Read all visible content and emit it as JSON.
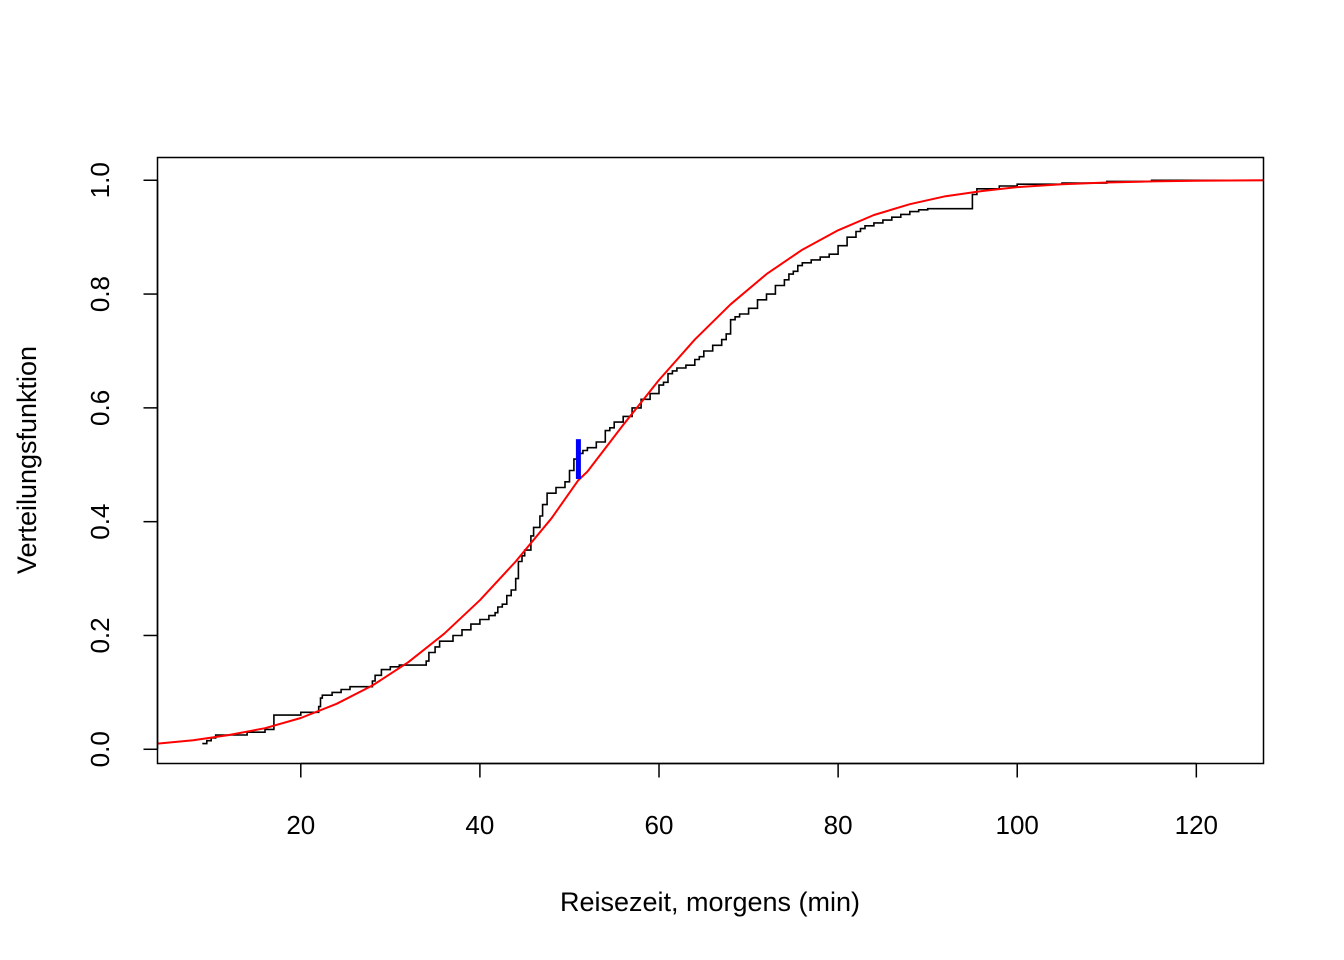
{
  "chart_data": {
    "type": "line",
    "title": "",
    "xlabel": "Reisezeit, morgens (min)",
    "ylabel": "Verteilungsfunktion",
    "xlim": [
      4,
      127.5
    ],
    "ylim": [
      -0.025,
      1.04
    ],
    "x_ticks": [
      20,
      40,
      60,
      80,
      100,
      120
    ],
    "x_tick_labels": [
      "20",
      "40",
      "60",
      "80",
      "100",
      "120"
    ],
    "y_ticks": [
      0.0,
      0.2,
      0.4,
      0.6,
      0.8,
      1.0
    ],
    "y_tick_labels": [
      "0.0",
      "0.2",
      "0.4",
      "0.6",
      "0.8",
      "1.0"
    ],
    "grid": false,
    "legend": "none",
    "series": [
      {
        "kind": "empirical-cdf",
        "color": "#000000",
        "points": [
          [
            9,
            0.01
          ],
          [
            9.5,
            0.015
          ],
          [
            10,
            0.02
          ],
          [
            10.5,
            0.025
          ],
          [
            14,
            0.03
          ],
          [
            16,
            0.035
          ],
          [
            17,
            0.06
          ],
          [
            20,
            0.065
          ],
          [
            22,
            0.075
          ],
          [
            22.2,
            0.09
          ],
          [
            22.4,
            0.095
          ],
          [
            23.5,
            0.1
          ],
          [
            24.5,
            0.105
          ],
          [
            25.5,
            0.11
          ],
          [
            28,
            0.12
          ],
          [
            28.3,
            0.13
          ],
          [
            29,
            0.14
          ],
          [
            30,
            0.145
          ],
          [
            31,
            0.148
          ],
          [
            34,
            0.155
          ],
          [
            34.3,
            0.17
          ],
          [
            35,
            0.18
          ],
          [
            35.5,
            0.19
          ],
          [
            37,
            0.2
          ],
          [
            38,
            0.21
          ],
          [
            39,
            0.22
          ],
          [
            40,
            0.228
          ],
          [
            41,
            0.235
          ],
          [
            41.7,
            0.24
          ],
          [
            42,
            0.25
          ],
          [
            42.5,
            0.255
          ],
          [
            43,
            0.27
          ],
          [
            43.5,
            0.28
          ],
          [
            44,
            0.3
          ],
          [
            44.3,
            0.33
          ],
          [
            44.7,
            0.34
          ],
          [
            45,
            0.35
          ],
          [
            45.7,
            0.375
          ],
          [
            46,
            0.39
          ],
          [
            46.7,
            0.41
          ],
          [
            47,
            0.43
          ],
          [
            47.5,
            0.45
          ],
          [
            48.5,
            0.46
          ],
          [
            49.5,
            0.47
          ],
          [
            50,
            0.49
          ],
          [
            50.5,
            0.51
          ],
          [
            51,
            0.52
          ],
          [
            51.5,
            0.525
          ],
          [
            52,
            0.53
          ],
          [
            53,
            0.54
          ],
          [
            54,
            0.56
          ],
          [
            54.5,
            0.565
          ],
          [
            55,
            0.575
          ],
          [
            56,
            0.585
          ],
          [
            57,
            0.6
          ],
          [
            58,
            0.615
          ],
          [
            59,
            0.625
          ],
          [
            60,
            0.64
          ],
          [
            60.5,
            0.645
          ],
          [
            61,
            0.66
          ],
          [
            61.5,
            0.665
          ],
          [
            62,
            0.67
          ],
          [
            63,
            0.675
          ],
          [
            64,
            0.685
          ],
          [
            64.5,
            0.69
          ],
          [
            65,
            0.7
          ],
          [
            66,
            0.71
          ],
          [
            67,
            0.72
          ],
          [
            67.5,
            0.73
          ],
          [
            68,
            0.755
          ],
          [
            68.5,
            0.76
          ],
          [
            69,
            0.765
          ],
          [
            70,
            0.775
          ],
          [
            71,
            0.79
          ],
          [
            72,
            0.8
          ],
          [
            73,
            0.815
          ],
          [
            74,
            0.825
          ],
          [
            74.5,
            0.835
          ],
          [
            75,
            0.84
          ],
          [
            75.5,
            0.85
          ],
          [
            76,
            0.855
          ],
          [
            77,
            0.86
          ],
          [
            78,
            0.865
          ],
          [
            79,
            0.87
          ],
          [
            80,
            0.885
          ],
          [
            81,
            0.9
          ],
          [
            82,
            0.91
          ],
          [
            82.5,
            0.915
          ],
          [
            83,
            0.92
          ],
          [
            84,
            0.925
          ],
          [
            85,
            0.93
          ],
          [
            86,
            0.935
          ],
          [
            87,
            0.94
          ],
          [
            88,
            0.945
          ],
          [
            89,
            0.948
          ],
          [
            90,
            0.95
          ],
          [
            95,
            0.975
          ],
          [
            95.5,
            0.985
          ],
          [
            98,
            0.99
          ],
          [
            100,
            0.993
          ],
          [
            105,
            0.995
          ],
          [
            110,
            0.998
          ],
          [
            115,
            1.0
          ]
        ]
      },
      {
        "kind": "fitted-cdf",
        "color": "#ff0000",
        "x": [
          4,
          8,
          12,
          16,
          20,
          24,
          28,
          32,
          36,
          40,
          44,
          48,
          51,
          52,
          56,
          60,
          64,
          68,
          72,
          76,
          80,
          84,
          88,
          92,
          96,
          100,
          105,
          110,
          115,
          120,
          127.5
        ],
        "y": [
          0.01,
          0.016,
          0.025,
          0.037,
          0.055,
          0.08,
          0.112,
          0.153,
          0.203,
          0.262,
          0.33,
          0.406,
          0.473,
          0.488,
          0.57,
          0.649,
          0.72,
          0.782,
          0.835,
          0.878,
          0.912,
          0.939,
          0.958,
          0.972,
          0.981,
          0.988,
          0.993,
          0.996,
          0.998,
          0.999,
          1.0
        ]
      }
    ],
    "annotation": {
      "kind": "max-deviation-segment",
      "color": "#0000ff",
      "x": 51,
      "y_from": 0.475,
      "y_to": 0.545
    }
  }
}
